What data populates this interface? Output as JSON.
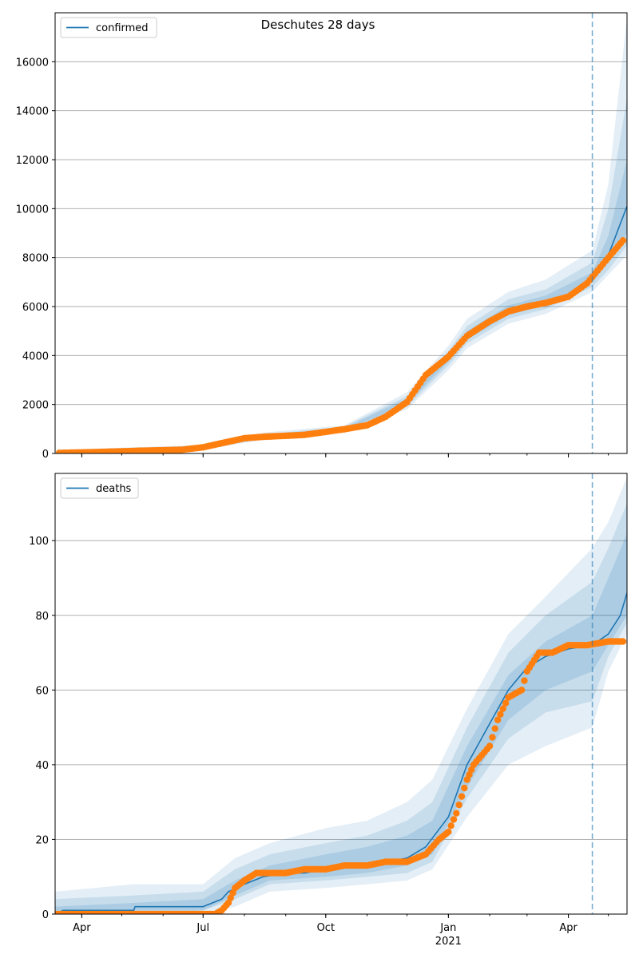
{
  "figure": {
    "title": "Deschutes 28 days",
    "colors": {
      "line": "#1f77b4",
      "points": "#ff7f0e",
      "band": "#1f77b4",
      "grid": "#b0b0b0",
      "forecast_line": "#1f77b4"
    }
  },
  "chart_data": [
    {
      "type": "line",
      "legend": {
        "label": "confirmed",
        "position": "upper-left"
      },
      "ylim": [
        0,
        18000
      ],
      "yticks": [
        0,
        2000,
        4000,
        6000,
        8000,
        10000,
        12000,
        14000,
        16000
      ],
      "grid": "y",
      "forecast_start": "2021-04-19",
      "series": [
        {
          "name": "confirmed",
          "kind": "model-line",
          "points": [
            [
              "2020-03-15",
              20
            ],
            [
              "2020-04-15",
              60
            ],
            [
              "2020-05-15",
              110
            ],
            [
              "2020-06-15",
              150
            ],
            [
              "2020-07-01",
              250
            ],
            [
              "2020-07-15",
              420
            ],
            [
              "2020-08-01",
              620
            ],
            [
              "2020-08-15",
              680
            ],
            [
              "2020-09-01",
              720
            ],
            [
              "2020-09-15",
              760
            ],
            [
              "2020-10-01",
              880
            ],
            [
              "2020-10-15",
              990
            ],
            [
              "2020-11-01",
              1150
            ],
            [
              "2020-11-15",
              1500
            ],
            [
              "2020-12-01",
              2100
            ],
            [
              "2020-12-15",
              3200
            ],
            [
              "2021-01-01",
              3900
            ],
            [
              "2021-01-15",
              4800
            ],
            [
              "2021-02-01",
              5400
            ],
            [
              "2021-02-15",
              5800
            ],
            [
              "2021-03-01",
              6050
            ],
            [
              "2021-03-15",
              6200
            ],
            [
              "2021-04-01",
              6450
            ],
            [
              "2021-04-15",
              6900
            ],
            [
              "2021-05-01",
              8100
            ],
            [
              "2021-05-15",
              10100
            ]
          ]
        },
        {
          "name": "observed",
          "kind": "observations",
          "points": [
            [
              "2020-03-15",
              20
            ],
            [
              "2020-04-15",
              60
            ],
            [
              "2020-05-15",
              110
            ],
            [
              "2020-06-15",
              150
            ],
            [
              "2020-07-01",
              250
            ],
            [
              "2020-07-15",
              420
            ],
            [
              "2020-08-01",
              620
            ],
            [
              "2020-08-15",
              680
            ],
            [
              "2020-09-01",
              720
            ],
            [
              "2020-09-15",
              760
            ],
            [
              "2020-10-01",
              880
            ],
            [
              "2020-10-15",
              990
            ],
            [
              "2020-11-01",
              1150
            ],
            [
              "2020-11-15",
              1500
            ],
            [
              "2020-12-01",
              2100
            ],
            [
              "2020-12-15",
              3200
            ],
            [
              "2021-01-01",
              3950
            ],
            [
              "2021-01-15",
              4800
            ],
            [
              "2021-02-01",
              5400
            ],
            [
              "2021-02-15",
              5800
            ],
            [
              "2021-03-01",
              6000
            ],
            [
              "2021-03-15",
              6150
            ],
            [
              "2021-04-01",
              6400
            ],
            [
              "2021-04-15",
              6950
            ],
            [
              "2021-05-01",
              8000
            ],
            [
              "2021-05-12",
              8700
            ]
          ]
        }
      ],
      "bands": [
        {
          "level": "outer",
          "points": [
            [
              "2020-03-15",
              0,
              150
            ],
            [
              "2020-07-01",
              150,
              350
            ],
            [
              "2020-08-15",
              550,
              850
            ],
            [
              "2020-10-15",
              850,
              1150
            ],
            [
              "2020-12-01",
              1800,
              2500
            ],
            [
              "2021-01-01",
              3400,
              4400
            ],
            [
              "2021-01-15",
              4300,
              5500
            ],
            [
              "2021-02-15",
              5300,
              6600
            ],
            [
              "2021-03-15",
              5700,
              7100
            ],
            [
              "2021-04-19",
              6600,
              8300
            ],
            [
              "2021-05-01",
              7300,
              11000
            ],
            [
              "2021-05-15",
              8100,
              17800
            ]
          ]
        },
        {
          "level": "middle",
          "points": [
            [
              "2020-03-15",
              0,
              100
            ],
            [
              "2020-07-01",
              180,
              320
            ],
            [
              "2020-08-15",
              600,
              780
            ],
            [
              "2020-10-15",
              900,
              1100
            ],
            [
              "2020-12-01",
              1900,
              2350
            ],
            [
              "2021-01-01",
              3600,
              4200
            ],
            [
              "2021-01-15",
              4500,
              5200
            ],
            [
              "2021-02-15",
              5500,
              6300
            ],
            [
              "2021-03-15",
              5900,
              6700
            ],
            [
              "2021-04-19",
              6800,
              7800
            ],
            [
              "2021-05-01",
              7500,
              10000
            ],
            [
              "2021-05-15",
              8500,
              14500
            ]
          ]
        },
        {
          "level": "inner",
          "points": [
            [
              "2020-03-15",
              5,
              60
            ],
            [
              "2020-07-01",
              210,
              290
            ],
            [
              "2020-08-15",
              640,
              720
            ],
            [
              "2020-10-15",
              940,
              1050
            ],
            [
              "2020-12-01",
              2000,
              2250
            ],
            [
              "2021-01-01",
              3750,
              4050
            ],
            [
              "2021-01-15",
              4650,
              5000
            ],
            [
              "2021-02-15",
              5650,
              6050
            ],
            [
              "2021-03-15",
              6050,
              6450
            ],
            [
              "2021-04-19",
              7000,
              7400
            ],
            [
              "2021-05-01",
              7800,
              8900
            ],
            [
              "2021-05-15",
              9000,
              12000
            ]
          ]
        }
      ]
    },
    {
      "type": "line",
      "legend": {
        "label": "deaths",
        "position": "upper-left"
      },
      "ylim": [
        0,
        118
      ],
      "yticks": [
        0,
        20,
        40,
        60,
        80,
        100
      ],
      "xticks": [
        "Apr",
        "Jul",
        "Oct",
        "Jan",
        "Apr"
      ],
      "xtick_dates": [
        "2020-04-01",
        "2020-07-01",
        "2020-10-01",
        "2021-01-01",
        "2021-04-01"
      ],
      "year_label": "2021",
      "xlim": [
        "2020-03-12",
        "2021-05-15"
      ],
      "grid": "y",
      "forecast_start": "2021-04-19",
      "series": [
        {
          "name": "deaths",
          "kind": "model-line",
          "points": [
            [
              "2020-03-12",
              0
            ],
            [
              "2020-03-18",
              1
            ],
            [
              "2020-05-10",
              1
            ],
            [
              "2020-05-11",
              2
            ],
            [
              "2020-07-01",
              2
            ],
            [
              "2020-07-15",
              4
            ],
            [
              "2020-07-20",
              6
            ],
            [
              "2020-08-01",
              8
            ],
            [
              "2020-08-15",
              10
            ],
            [
              "2020-09-01",
              11
            ],
            [
              "2020-09-15",
              11
            ],
            [
              "2020-10-01",
              12
            ],
            [
              "2020-11-01",
              13
            ],
            [
              "2020-11-15",
              14
            ],
            [
              "2020-12-01",
              15
            ],
            [
              "2020-12-15",
              18
            ],
            [
              "2021-01-01",
              26
            ],
            [
              "2021-01-15",
              40
            ],
            [
              "2021-02-01",
              51
            ],
            [
              "2021-02-15",
              60
            ],
            [
              "2021-03-01",
              66
            ],
            [
              "2021-03-15",
              69
            ],
            [
              "2021-04-01",
              71
            ],
            [
              "2021-04-19",
              72
            ],
            [
              "2021-05-01",
              75
            ],
            [
              "2021-05-10",
              80
            ],
            [
              "2021-05-15",
              86
            ]
          ]
        },
        {
          "name": "observed",
          "kind": "observations",
          "points": [
            [
              "2020-03-12",
              0
            ],
            [
              "2020-05-01",
              0
            ],
            [
              "2020-06-15",
              0
            ],
            [
              "2020-07-10",
              0
            ],
            [
              "2020-07-15",
              1
            ],
            [
              "2020-07-20",
              3
            ],
            [
              "2020-07-25",
              7
            ],
            [
              "2020-08-01",
              9
            ],
            [
              "2020-08-10",
              11
            ],
            [
              "2020-09-01",
              11
            ],
            [
              "2020-09-15",
              12
            ],
            [
              "2020-10-01",
              12
            ],
            [
              "2020-10-15",
              13
            ],
            [
              "2020-11-01",
              13
            ],
            [
              "2020-11-15",
              14
            ],
            [
              "2020-12-01",
              14
            ],
            [
              "2020-12-15",
              16
            ],
            [
              "2020-12-25",
              20
            ],
            [
              "2021-01-01",
              22
            ],
            [
              "2021-01-07",
              27
            ],
            [
              "2021-01-15",
              36
            ],
            [
              "2021-01-20",
              40
            ],
            [
              "2021-02-01",
              45
            ],
            [
              "2021-02-07",
              52
            ],
            [
              "2021-02-15",
              58
            ],
            [
              "2021-02-25",
              60
            ],
            [
              "2021-03-01",
              65
            ],
            [
              "2021-03-10",
              70
            ],
            [
              "2021-03-20",
              70
            ],
            [
              "2021-04-01",
              72
            ],
            [
              "2021-04-15",
              72
            ],
            [
              "2021-05-01",
              73
            ],
            [
              "2021-05-12",
              73
            ]
          ]
        }
      ],
      "bands": [
        {
          "level": "outer",
          "points": [
            [
              "2020-03-12",
              0,
              6
            ],
            [
              "2020-05-10",
              0,
              8
            ],
            [
              "2020-07-01",
              0,
              8
            ],
            [
              "2020-07-25",
              2,
              15
            ],
            [
              "2020-08-20",
              6,
              19
            ],
            [
              "2020-10-01",
              7,
              23
            ],
            [
              "2020-11-01",
              8,
              25
            ],
            [
              "2020-12-01",
              9,
              30
            ],
            [
              "2020-12-20",
              12,
              36
            ],
            [
              "2021-01-15",
              26,
              55
            ],
            [
              "2021-02-15",
              40,
              75
            ],
            [
              "2021-03-15",
              45,
              85
            ],
            [
              "2021-04-19",
              50,
              98
            ],
            [
              "2021-05-01",
              65,
              105
            ],
            [
              "2021-05-15",
              75,
              117
            ]
          ]
        },
        {
          "level": "middle",
          "points": [
            [
              "2020-03-12",
              0,
              4
            ],
            [
              "2020-05-10",
              0,
              5
            ],
            [
              "2020-07-01",
              1,
              6
            ],
            [
              "2020-07-25",
              4,
              12
            ],
            [
              "2020-08-20",
              8,
              16
            ],
            [
              "2020-10-01",
              9,
              19
            ],
            [
              "2020-11-01",
              10,
              21
            ],
            [
              "2020-12-01",
              11,
              25
            ],
            [
              "2020-12-20",
              14,
              30
            ],
            [
              "2021-01-15",
              31,
              50
            ],
            [
              "2021-02-15",
              47,
              70
            ],
            [
              "2021-03-15",
              54,
              80
            ],
            [
              "2021-04-19",
              57,
              89
            ],
            [
              "2021-05-01",
              69,
              98
            ],
            [
              "2021-05-15",
              78,
              110
            ]
          ]
        },
        {
          "level": "inner",
          "points": [
            [
              "2020-03-12",
              0,
              2
            ],
            [
              "2020-05-10",
              1,
              3
            ],
            [
              "2020-07-01",
              1,
              4
            ],
            [
              "2020-07-25",
              5,
              9
            ],
            [
              "2020-08-20",
              9,
              13
            ],
            [
              "2020-10-01",
              10,
              16
            ],
            [
              "2020-11-01",
              11,
              18
            ],
            [
              "2020-12-01",
              13,
              21
            ],
            [
              "2020-12-20",
              16,
              25
            ],
            [
              "2021-01-15",
              34,
              45
            ],
            [
              "2021-02-15",
              52,
              64
            ],
            [
              "2021-03-15",
              60,
              73
            ],
            [
              "2021-04-19",
              65,
              80
            ],
            [
              "2021-05-01",
              72,
              90
            ],
            [
              "2021-05-15",
              80,
              102
            ]
          ]
        }
      ]
    }
  ]
}
